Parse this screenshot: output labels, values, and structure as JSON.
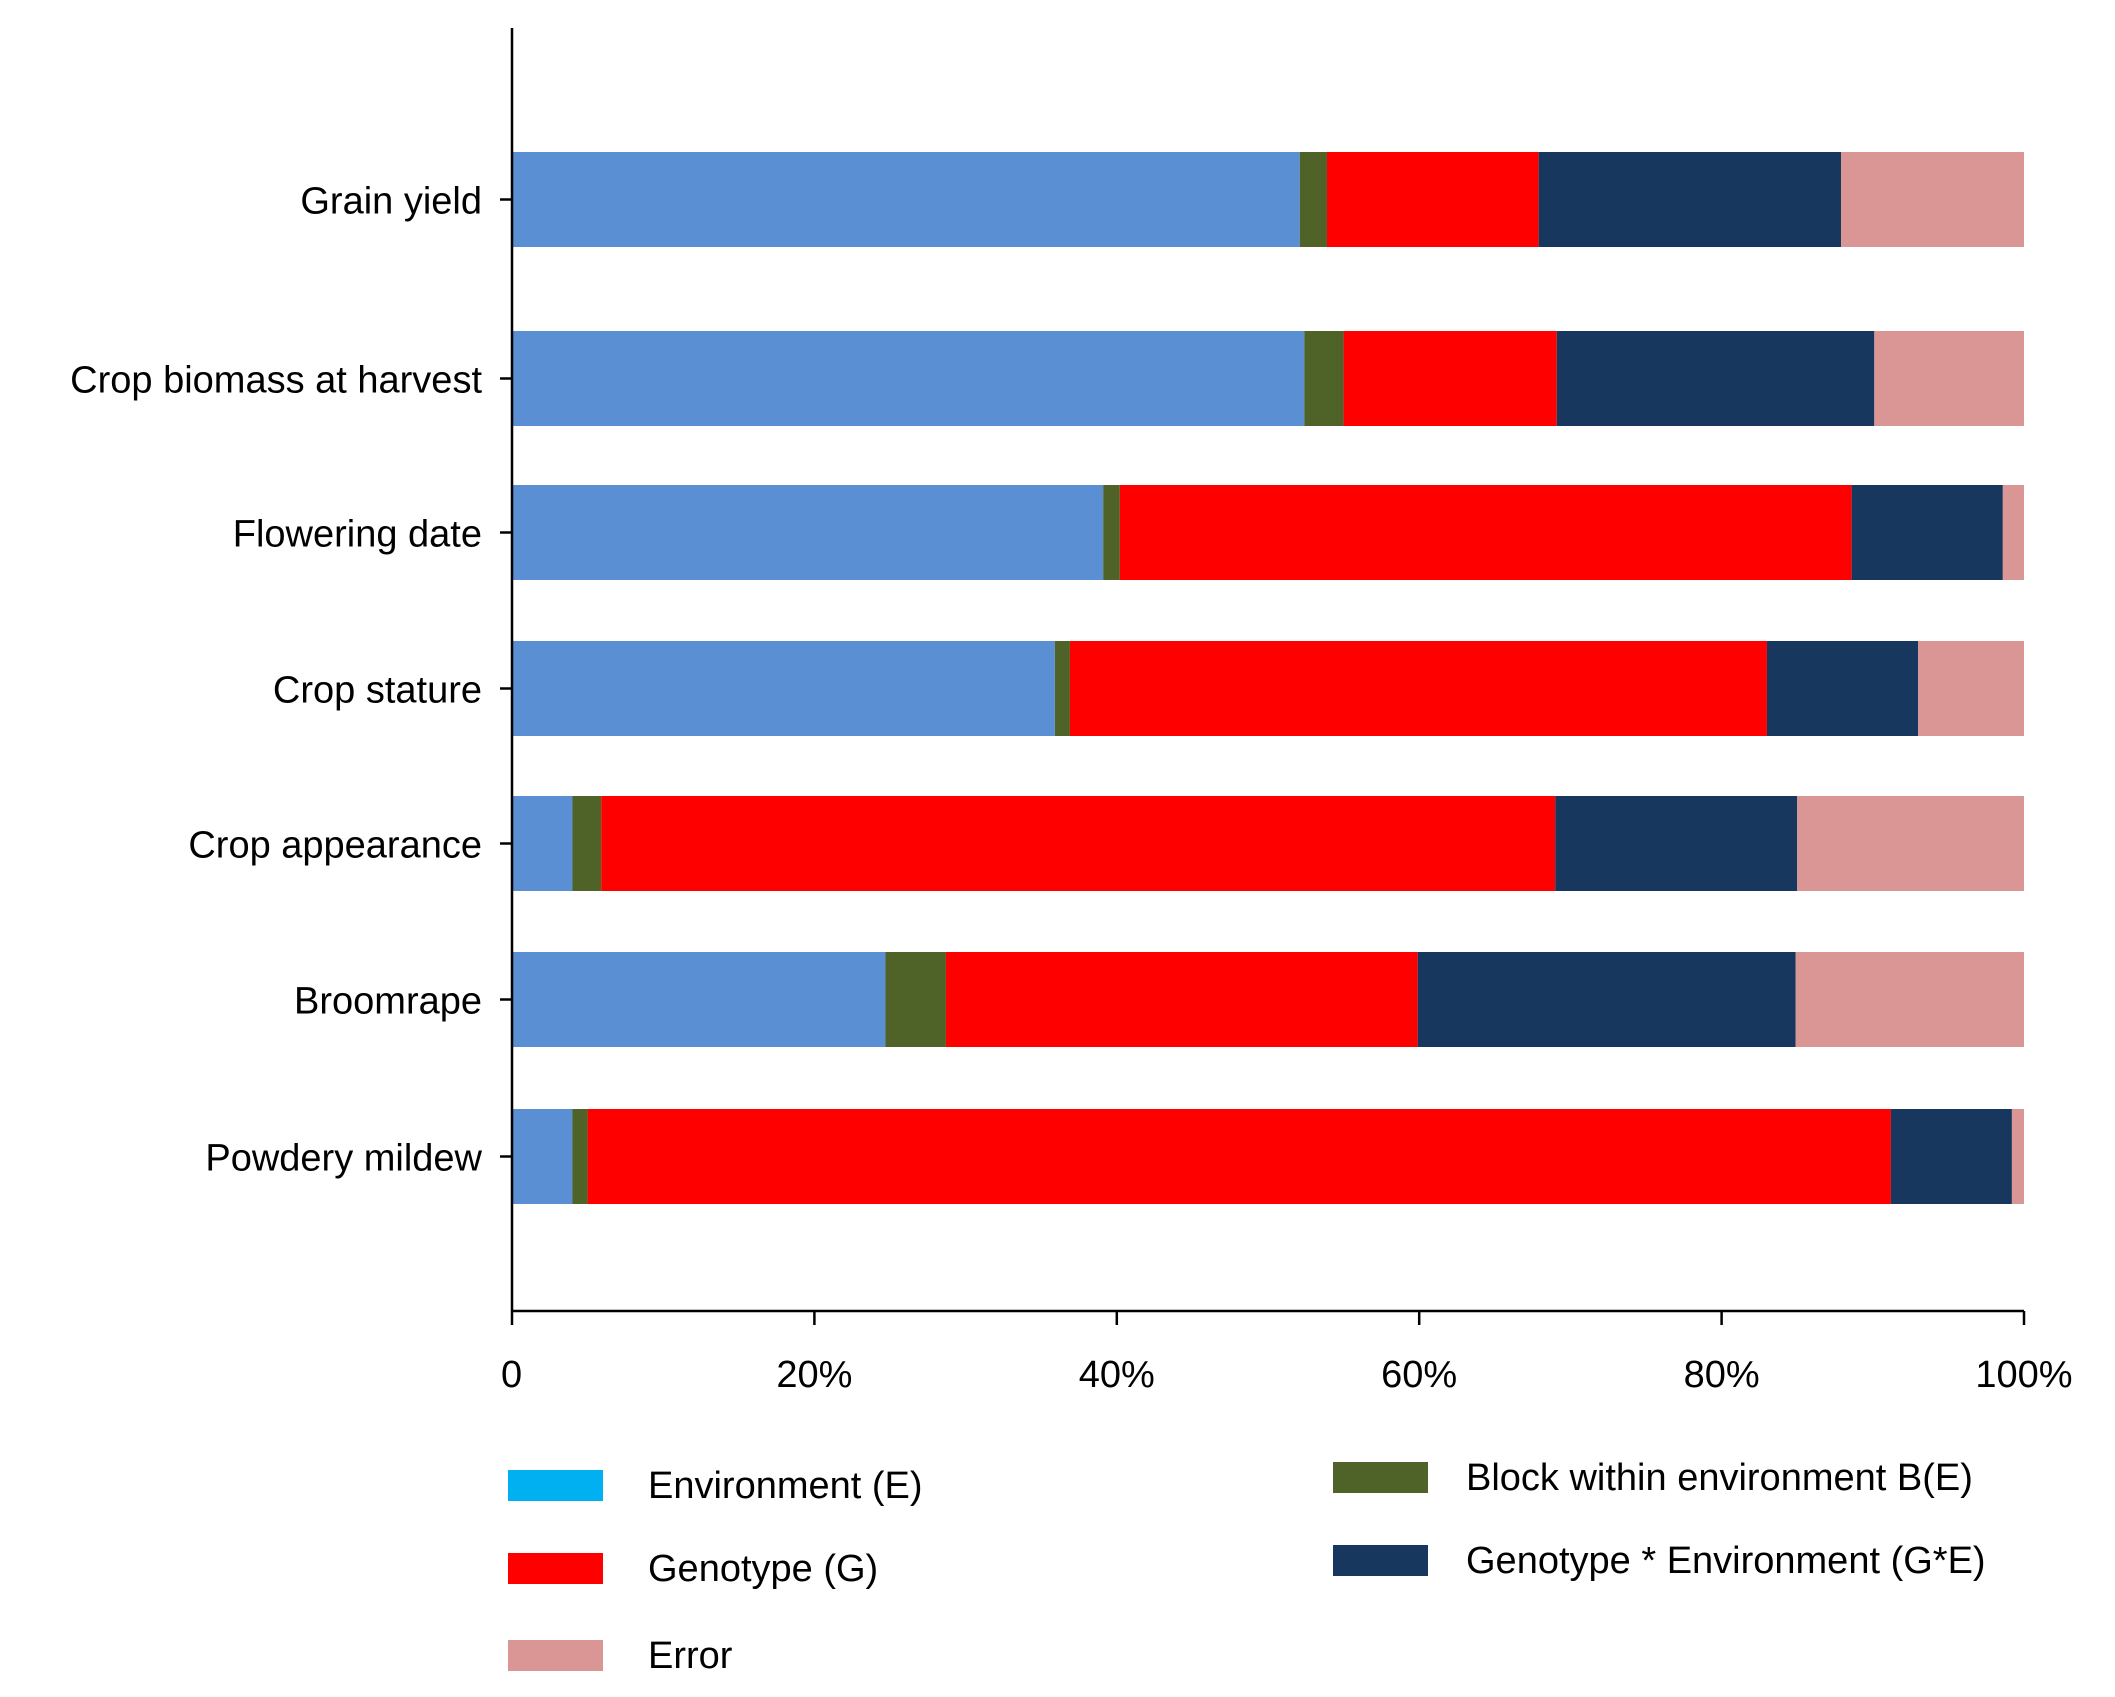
{
  "chart_data": {
    "type": "bar",
    "orientation": "horizontal",
    "stacked": true,
    "normalized": true,
    "categories": [
      "Grain yield",
      "Crop biomass at harvest",
      "Flowering date",
      "Crop stature",
      "Crop appearance",
      "Broomrape",
      "Powdery mildew"
    ],
    "series": [
      {
        "name": "Environment  (E)",
        "color": "#5B8FD4",
        "legend_color": "#00B0F0",
        "values": [
          52.1,
          52.4,
          39.1,
          35.9,
          4.0,
          24.7,
          4.0
        ]
      },
      {
        "name": "Block within environment  B(E)",
        "color": "#4F6228",
        "values": [
          1.8,
          2.6,
          1.1,
          1.0,
          1.9,
          4.0,
          1.0
        ]
      },
      {
        "name": "Genotype (G)",
        "color": "#FF0000",
        "values": [
          14.0,
          14.1,
          48.4,
          46.1,
          63.1,
          31.2,
          86.2
        ]
      },
      {
        "name": "Genotype * Environment  (G*E)",
        "color": "#17375E",
        "values": [
          20.0,
          21.0,
          10.0,
          10.0,
          16.0,
          25.0,
          8.0
        ]
      },
      {
        "name": "Error",
        "color": "#D99694",
        "values": [
          12.1,
          9.9,
          1.4,
          7.0,
          15.0,
          15.1,
          0.8
        ]
      }
    ],
    "xlim": [
      0,
      100
    ],
    "x_ticks": [
      0,
      20,
      40,
      60,
      80,
      100
    ],
    "x_tick_labels": [
      "0",
      "20%",
      "40%",
      "60%",
      "80%",
      "100%"
    ],
    "xlabel": "",
    "ylabel": "",
    "title": "",
    "grid": false,
    "legend_position": "bottom"
  }
}
